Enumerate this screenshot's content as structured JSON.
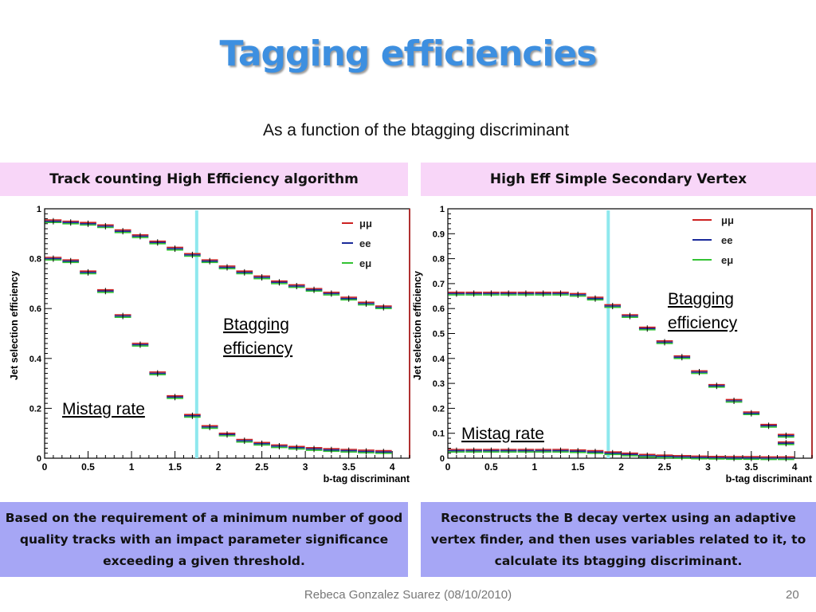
{
  "slide": {
    "title": "Tagging efficiencies",
    "subtitle": "As a function of the btagging discriminant",
    "footer": "Rebeca Gonzalez Suarez  (08/10/2010)",
    "page_number": "20"
  },
  "panels": [
    {
      "header": "Track counting High Efficiency algorithm",
      "description": "Based on the requirement of a minimum number of good quality tracks with an impact parameter significance exceeding a given threshold.",
      "annotation_btag": [
        "Btagging",
        "efficiency"
      ],
      "annotation_mistag": "Mistag rate"
    },
    {
      "header": "High Eff  Simple Secondary Vertex",
      "description": "Reconstructs the B decay vertex using an adaptive vertex finder, and then uses variables related to it, to calculate its btagging discriminant.",
      "annotation_btag": [
        "Btagging",
        "efficiency"
      ],
      "annotation_mistag": "Mistag rate"
    }
  ],
  "chart_data": [
    {
      "type": "scatter",
      "xlabel": "b-tag discriminant",
      "ylabel": "Jet selection efficiency",
      "xlim": [
        0,
        4.2
      ],
      "ylim": [
        0,
        1
      ],
      "xticks": [
        "0",
        "0.5",
        "1",
        "1.5",
        "2",
        "2.5",
        "3",
        "3.5",
        "4"
      ],
      "yticks": [
        "0",
        "0.2",
        "0.4",
        "0.6",
        "0.8",
        "1"
      ],
      "vertical_line_x": 1.75,
      "legend": [
        "μμ",
        "ee",
        "eμ"
      ],
      "legend_colors": [
        "#cc2222",
        "#1a2a9a",
        "#33c233"
      ],
      "x": [
        0.1,
        0.3,
        0.5,
        0.7,
        0.9,
        1.1,
        1.3,
        1.5,
        1.7,
        1.9,
        2.1,
        2.3,
        2.5,
        2.7,
        2.9,
        3.1,
        3.3,
        3.5,
        3.7,
        3.9
      ],
      "series": [
        {
          "name": "btag",
          "values": [
            0.95,
            0.945,
            0.94,
            0.93,
            0.91,
            0.89,
            0.865,
            0.84,
            0.815,
            0.79,
            0.765,
            0.745,
            0.725,
            0.705,
            0.69,
            0.675,
            0.66,
            0.64,
            0.62,
            0.605
          ]
        },
        {
          "name": "mistag",
          "values": [
            0.8,
            0.79,
            0.745,
            0.67,
            0.57,
            0.455,
            0.34,
            0.245,
            0.17,
            0.125,
            0.095,
            0.07,
            0.058,
            0.048,
            0.042,
            0.037,
            0.033,
            0.03,
            0.027,
            0.025
          ]
        }
      ]
    },
    {
      "type": "scatter",
      "xlabel": "b-tag discriminant",
      "ylabel": "Jet selection efficiency",
      "xlim": [
        0,
        4.2
      ],
      "ylim": [
        0,
        1
      ],
      "xticks": [
        "0",
        "0.5",
        "1",
        "1.5",
        "2",
        "2.5",
        "3",
        "3.5",
        "4"
      ],
      "yticks": [
        "0",
        "0.1",
        "0.2",
        "0.3",
        "0.4",
        "0.5",
        "0.6",
        "0.7",
        "0.8",
        "0.9",
        "1"
      ],
      "vertical_line_x": 1.85,
      "legend": [
        "μμ",
        "ee",
        "eμ"
      ],
      "legend_colors": [
        "#cc2222",
        "#1a2a9a",
        "#33c233"
      ],
      "x": [
        0.1,
        0.3,
        0.5,
        0.7,
        0.9,
        1.1,
        1.3,
        1.5,
        1.7,
        1.9,
        2.1,
        2.3,
        2.5,
        2.7,
        2.9,
        3.1,
        3.3,
        3.5,
        3.7,
        3.9
      ],
      "series": [
        {
          "name": "btag",
          "values": [
            0.66,
            0.66,
            0.66,
            0.66,
            0.66,
            0.66,
            0.66,
            0.655,
            0.64,
            0.61,
            0.57,
            0.52,
            0.465,
            0.405,
            0.345,
            0.29,
            0.23,
            0.18,
            0.13,
            0.09
          ]
        },
        {
          "name": "btag-tail",
          "values": [
            null,
            null,
            null,
            null,
            null,
            null,
            null,
            null,
            null,
            null,
            null,
            null,
            null,
            null,
            null,
            null,
            null,
            null,
            null,
            0.06
          ]
        },
        {
          "name": "mistag",
          "values": [
            0.03,
            0.03,
            0.03,
            0.03,
            0.03,
            0.03,
            0.03,
            0.028,
            0.025,
            0.02,
            0.015,
            0.01,
            0.007,
            0.005,
            0.003,
            0.002,
            0.001,
            0.001,
            0.0,
            0.0
          ]
        }
      ]
    }
  ]
}
